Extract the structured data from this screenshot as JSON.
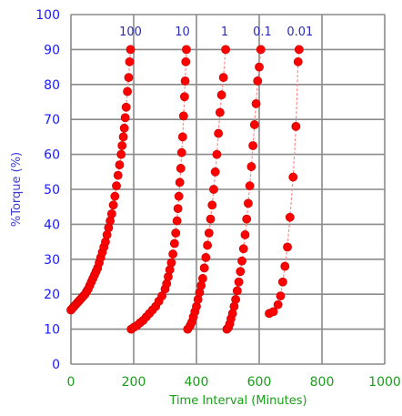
{
  "chart_data": {
    "type": "scatter",
    "title": "",
    "xlabel": "Time Interval (Minutes)",
    "ylabel": "%Torque (%)",
    "xlim": [
      0,
      1000
    ],
    "ylim": [
      0,
      100
    ],
    "x_ticks": [
      "0",
      "200",
      "400",
      "600",
      "800",
      "1000"
    ],
    "y_ticks": [
      "0",
      "10",
      "20",
      "30",
      "40",
      "50",
      "60",
      "70",
      "80",
      "90",
      "100"
    ],
    "grid": true,
    "series_color": "#ff0000",
    "annotations": [
      {
        "text": "100",
        "x": 190,
        "y": 94
      },
      {
        "text": "10",
        "x": 355,
        "y": 94
      },
      {
        "text": "1",
        "x": 490,
        "y": 94
      },
      {
        "text": "0.1",
        "x": 610,
        "y": 94
      },
      {
        "text": "0.01",
        "x": 730,
        "y": 94
      }
    ],
    "series": [
      {
        "values": [
          [
            0,
            15.5
          ],
          [
            5,
            16
          ],
          [
            10,
            16.5
          ],
          [
            15,
            17
          ],
          [
            20,
            17.5
          ],
          [
            25,
            18
          ],
          [
            30,
            18.5
          ],
          [
            35,
            19
          ],
          [
            40,
            19.5
          ],
          [
            45,
            20
          ],
          [
            50,
            20.8
          ],
          [
            55,
            21.5
          ],
          [
            60,
            22.5
          ],
          [
            65,
            23.5
          ],
          [
            70,
            24.5
          ],
          [
            75,
            25.5
          ],
          [
            80,
            26.5
          ],
          [
            85,
            27.5
          ],
          [
            90,
            29
          ],
          [
            95,
            30.5
          ],
          [
            100,
            32
          ],
          [
            105,
            33.5
          ],
          [
            110,
            35
          ],
          [
            115,
            37
          ],
          [
            120,
            39
          ],
          [
            125,
            41
          ],
          [
            130,
            43
          ],
          [
            135,
            45.5
          ],
          [
            140,
            48
          ],
          [
            145,
            51
          ],
          [
            150,
            54
          ],
          [
            155,
            57
          ],
          [
            160,
            60
          ],
          [
            163,
            62.5
          ],
          [
            167,
            65
          ],
          [
            170,
            67.5
          ],
          [
            173,
            70.5
          ],
          [
            176,
            73.5
          ],
          [
            180,
            78
          ],
          [
            184,
            82
          ],
          [
            187,
            86.5
          ],
          [
            190,
            90
          ]
        ]
      },
      {
        "values": [
          [
            192,
            10
          ],
          [
            200,
            10.5
          ],
          [
            210,
            11
          ],
          [
            220,
            11.8
          ],
          [
            230,
            12.5
          ],
          [
            240,
            13.5
          ],
          [
            250,
            14.5
          ],
          [
            260,
            15.5
          ],
          [
            270,
            16.5
          ],
          [
            280,
            18
          ],
          [
            290,
            19.5
          ],
          [
            300,
            21.5
          ],
          [
            305,
            23
          ],
          [
            310,
            25
          ],
          [
            315,
            27
          ],
          [
            320,
            29
          ],
          [
            325,
            31.5
          ],
          [
            330,
            34.5
          ],
          [
            334,
            37.5
          ],
          [
            338,
            41
          ],
          [
            341,
            44.5
          ],
          [
            344,
            48
          ],
          [
            347,
            52
          ],
          [
            350,
            56
          ],
          [
            353,
            60.5
          ],
          [
            356,
            65
          ],
          [
            359,
            71
          ],
          [
            362,
            76.5
          ],
          [
            364,
            81
          ],
          [
            366,
            86.5
          ],
          [
            368,
            90
          ]
        ]
      },
      {
        "values": [
          [
            372,
            10
          ],
          [
            380,
            11
          ],
          [
            385,
            12
          ],
          [
            390,
            13.5
          ],
          [
            395,
            15
          ],
          [
            400,
            16.5
          ],
          [
            405,
            18.5
          ],
          [
            410,
            20.5
          ],
          [
            415,
            22.5
          ],
          [
            420,
            24.5
          ],
          [
            425,
            27.5
          ],
          [
            430,
            30.5
          ],
          [
            435,
            34
          ],
          [
            440,
            37.5
          ],
          [
            445,
            41.5
          ],
          [
            450,
            45.5
          ],
          [
            455,
            50
          ],
          [
            460,
            55
          ],
          [
            465,
            60
          ],
          [
            470,
            66
          ],
          [
            475,
            72
          ],
          [
            480,
            77
          ],
          [
            486,
            82
          ],
          [
            493,
            90
          ]
        ]
      },
      {
        "values": [
          [
            497,
            10
          ],
          [
            502,
            10.5
          ],
          [
            506,
            11.5
          ],
          [
            510,
            13
          ],
          [
            515,
            14.5
          ],
          [
            520,
            16.5
          ],
          [
            525,
            18.5
          ],
          [
            530,
            21
          ],
          [
            535,
            23.5
          ],
          [
            540,
            26.5
          ],
          [
            545,
            29.5
          ],
          [
            550,
            33
          ],
          [
            555,
            37
          ],
          [
            560,
            41.5
          ],
          [
            565,
            46
          ],
          [
            570,
            51
          ],
          [
            575,
            56.5
          ],
          [
            580,
            62.5
          ],
          [
            585,
            68.5
          ],
          [
            590,
            74.5
          ],
          [
            595,
            81
          ],
          [
            600,
            85
          ],
          [
            605,
            90
          ]
        ]
      },
      {
        "values": [
          [
            632,
            14.5
          ],
          [
            645,
            15
          ],
          [
            660,
            17
          ],
          [
            668,
            19.5
          ],
          [
            675,
            23.5
          ],
          [
            682,
            28
          ],
          [
            690,
            33.5
          ],
          [
            698,
            42
          ],
          [
            708,
            53.5
          ],
          [
            717,
            68
          ],
          [
            724,
            86.5
          ],
          [
            727,
            90
          ]
        ]
      }
    ]
  }
}
